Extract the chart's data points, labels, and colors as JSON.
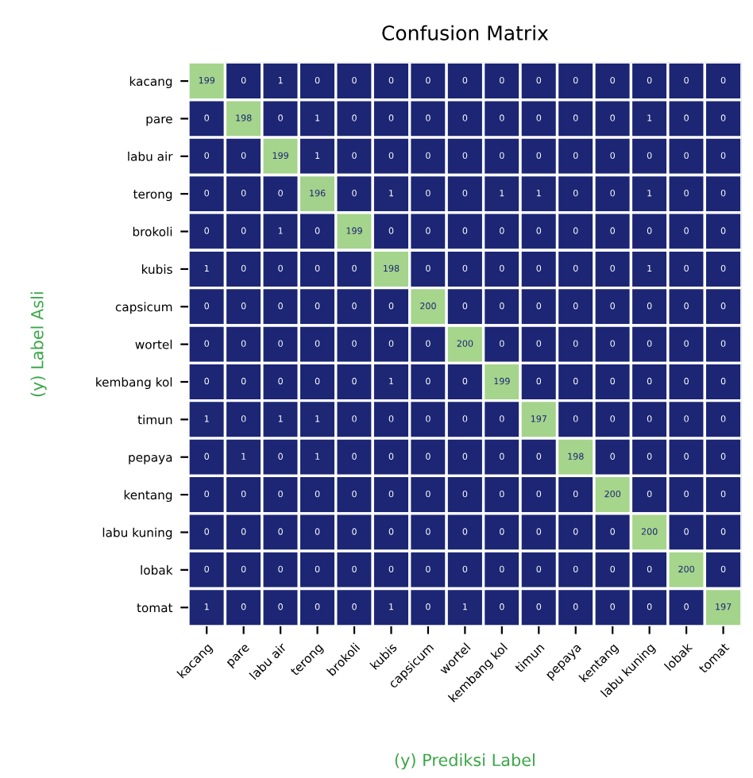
{
  "chart_data": {
    "type": "heatmap",
    "title": "Confusion Matrix",
    "xlabel": "(y) Prediksi Label",
    "ylabel": "(y) Label Asli",
    "categories": [
      "kacang",
      "pare",
      "labu air",
      "terong",
      "brokoli",
      "kubis",
      "capsicum",
      "wortel",
      "kembang kol",
      "timun",
      "pepaya",
      "kentang",
      "labu kuning",
      "lobak",
      "tomat"
    ],
    "y_categories": [
      "kacang",
      "pare",
      "labu air",
      "terong",
      "brokoli",
      "kubis",
      "capsicum",
      "wortel",
      "kembang kol",
      "timun",
      "pepaya",
      "kentang",
      "labu kuning",
      "lobak",
      "tomat"
    ],
    "colors": [
      "#1c2674",
      "#a6d58c"
    ],
    "data_labels": true,
    "cells": [
      [
        199,
        0,
        1,
        0,
        0,
        0,
        0,
        0,
        0,
        0,
        0,
        0,
        0,
        0,
        0
      ],
      [
        0,
        198,
        0,
        1,
        0,
        0,
        0,
        0,
        0,
        0,
        0,
        0,
        1,
        0,
        0
      ],
      [
        0,
        0,
        199,
        1,
        0,
        0,
        0,
        0,
        0,
        0,
        0,
        0,
        0,
        0,
        0
      ],
      [
        0,
        0,
        0,
        196,
        0,
        1,
        0,
        0,
        1,
        1,
        0,
        0,
        1,
        0,
        0
      ],
      [
        0,
        0,
        1,
        0,
        199,
        0,
        0,
        0,
        0,
        0,
        0,
        0,
        0,
        0,
        0
      ],
      [
        1,
        0,
        0,
        0,
        0,
        198,
        0,
        0,
        0,
        0,
        0,
        0,
        1,
        0,
        0
      ],
      [
        0,
        0,
        0,
        0,
        0,
        0,
        200,
        0,
        0,
        0,
        0,
        0,
        0,
        0,
        0
      ],
      [
        0,
        0,
        0,
        0,
        0,
        0,
        0,
        200,
        0,
        0,
        0,
        0,
        0,
        0,
        0
      ],
      [
        0,
        0,
        0,
        0,
        0,
        1,
        0,
        0,
        199,
        0,
        0,
        0,
        0,
        0,
        0
      ],
      [
        1,
        0,
        1,
        1,
        0,
        0,
        0,
        0,
        0,
        197,
        0,
        0,
        0,
        0,
        0
      ],
      [
        0,
        1,
        0,
        1,
        0,
        0,
        0,
        0,
        0,
        0,
        198,
        0,
        0,
        0,
        0
      ],
      [
        0,
        0,
        0,
        0,
        0,
        0,
        0,
        0,
        0,
        0,
        0,
        200,
        0,
        0,
        0
      ],
      [
        0,
        0,
        0,
        0,
        0,
        0,
        0,
        0,
        0,
        0,
        0,
        0,
        200,
        0,
        0
      ],
      [
        0,
        0,
        0,
        0,
        0,
        0,
        0,
        0,
        0,
        0,
        0,
        0,
        0,
        200,
        0
      ],
      [
        1,
        0,
        0,
        0,
        0,
        1,
        0,
        1,
        0,
        0,
        0,
        0,
        0,
        0,
        197
      ]
    ]
  }
}
